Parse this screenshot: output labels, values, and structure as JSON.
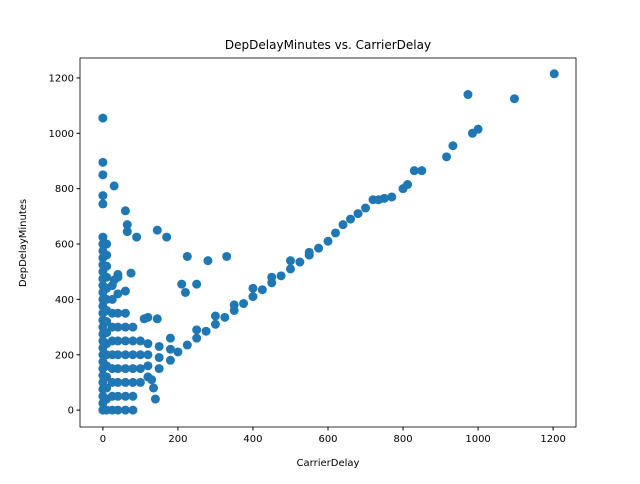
{
  "chart_data": {
    "type": "scatter",
    "title": "DepDelayMinutes vs. CarrierDelay",
    "x_label": "CarrierDelay",
    "y_label": "DepDelayMinutes",
    "color": "#1f77b4",
    "x": [
      0,
      0,
      0,
      0,
      0,
      0,
      0,
      0,
      0,
      0,
      0,
      0,
      0,
      0,
      0,
      0,
      0,
      0,
      0,
      0,
      0,
      0,
      0,
      0,
      0,
      0,
      0,
      0,
      0,
      0,
      0,
      10,
      10,
      10,
      10,
      10,
      10,
      10,
      10,
      10,
      10,
      10,
      10,
      10,
      10,
      10,
      10,
      25,
      25,
      25,
      25,
      25,
      25,
      25,
      25,
      25,
      25,
      40,
      40,
      40,
      40,
      40,
      40,
      40,
      40,
      40,
      40,
      60,
      60,
      60,
      60,
      60,
      60,
      60,
      60,
      80,
      80,
      80,
      80,
      80,
      80,
      80,
      100,
      100,
      100,
      100,
      120,
      120,
      120,
      120,
      150,
      150,
      150,
      180,
      180,
      180,
      200,
      225,
      250,
      275,
      300,
      325,
      350,
      375,
      400,
      425,
      450,
      475,
      500,
      525,
      550,
      575,
      600,
      250,
      300,
      350,
      400,
      450,
      500,
      550,
      1203,
      973,
      1097,
      1000,
      985,
      933,
      916,
      850,
      830,
      812,
      800,
      770,
      750,
      735,
      720,
      700,
      680,
      660,
      640,
      620,
      30,
      60,
      65,
      65,
      90,
      145,
      170,
      225,
      280,
      330,
      210,
      250,
      220,
      75,
      40,
      30,
      60,
      120,
      145,
      110,
      130,
      135,
      140
    ],
    "values": [
      0,
      25,
      50,
      75,
      100,
      125,
      150,
      175,
      200,
      225,
      250,
      275,
      300,
      325,
      350,
      375,
      400,
      425,
      450,
      475,
      500,
      525,
      550,
      575,
      600,
      625,
      745,
      775,
      850,
      895,
      1055,
      0,
      40,
      80,
      120,
      160,
      200,
      240,
      280,
      320,
      360,
      400,
      440,
      480,
      520,
      560,
      600,
      0,
      50,
      100,
      150,
      200,
      250,
      300,
      350,
      400,
      450,
      0,
      50,
      100,
      150,
      200,
      250,
      300,
      350,
      420,
      480,
      0,
      50,
      100,
      150,
      200,
      250,
      300,
      350,
      0,
      50,
      100,
      150,
      200,
      250,
      300,
      100,
      150,
      200,
      250,
      120,
      160,
      200,
      240,
      150,
      190,
      230,
      180,
      220,
      260,
      210,
      235,
      260,
      285,
      310,
      335,
      360,
      385,
      410,
      435,
      460,
      485,
      510,
      535,
      560,
      585,
      610,
      290,
      340,
      380,
      440,
      480,
      540,
      570,
      1215,
      1140,
      1125,
      1015,
      1000,
      955,
      915,
      865,
      865,
      815,
      800,
      770,
      765,
      760,
      760,
      730,
      710,
      690,
      670,
      640,
      810,
      720,
      670,
      645,
      625,
      650,
      625,
      555,
      540,
      555,
      455,
      455,
      425,
      495,
      490,
      470,
      430,
      335,
      330,
      330,
      110,
      80,
      40
    ],
    "xlim": [
      -61,
      1261
    ],
    "ylim": [
      -61,
      1272
    ],
    "xticks": [
      0,
      200,
      400,
      600,
      800,
      1000,
      1200
    ],
    "yticks": [
      0,
      200,
      400,
      600,
      800,
      1000,
      1200
    ]
  }
}
